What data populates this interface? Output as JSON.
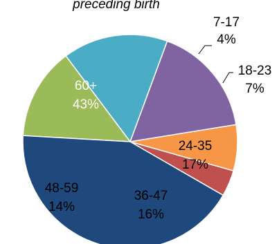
{
  "chart_data": {
    "type": "pie",
    "title": "preceding birth",
    "start_angle_deg": 120,
    "direction": "clockwise",
    "slices": [
      {
        "category": "7-17",
        "label": "4%",
        "value": 4,
        "color": "#C0504D",
        "label_color": "#000000"
      },
      {
        "category": "18-23",
        "label": "7%",
        "value": 7,
        "color": "#F79646",
        "label_color": "#000000"
      },
      {
        "category": "24-35",
        "label": "17%",
        "value": 17,
        "color": "#8064A2",
        "label_color": "#000000"
      },
      {
        "category": "36-47",
        "label": "16%",
        "value": 16,
        "color": "#4BACC6",
        "label_color": "#000000"
      },
      {
        "category": "48-59",
        "label": "14%",
        "value": 14,
        "color": "#9BBB59",
        "label_color": "#000000"
      },
      {
        "category": "60+",
        "label": "43%",
        "value": 43,
        "color": "#1F497D",
        "label_color": "#ffffff"
      }
    ]
  }
}
